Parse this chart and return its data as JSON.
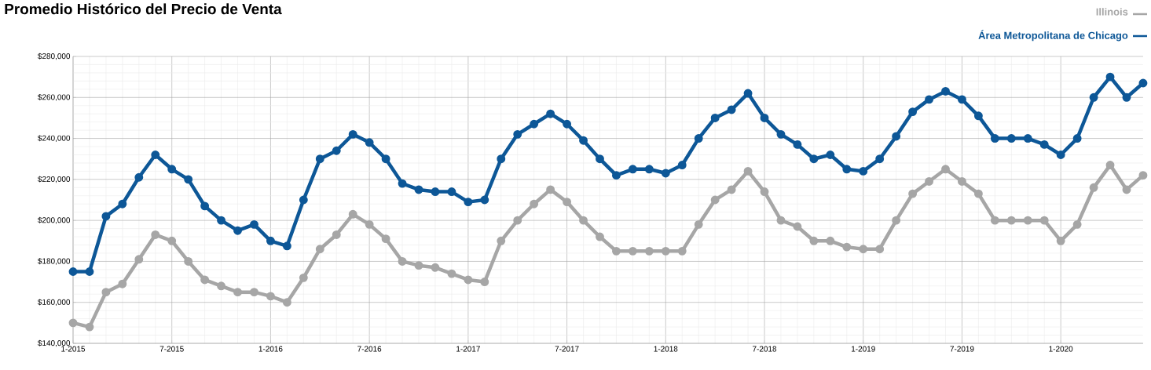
{
  "chart_data": {
    "type": "line",
    "title": "Promedio Histórico del Precio de Venta",
    "x": [
      "2015-01",
      "2015-02",
      "2015-03",
      "2015-04",
      "2015-05",
      "2015-06",
      "2015-07",
      "2015-08",
      "2015-09",
      "2015-10",
      "2015-11",
      "2015-12",
      "2016-01",
      "2016-02",
      "2016-03",
      "2016-04",
      "2016-05",
      "2016-06",
      "2016-07",
      "2016-08",
      "2016-09",
      "2016-10",
      "2016-11",
      "2016-12",
      "2017-01",
      "2017-02",
      "2017-03",
      "2017-04",
      "2017-05",
      "2017-06",
      "2017-07",
      "2017-08",
      "2017-09",
      "2017-10",
      "2017-11",
      "2017-12",
      "2018-01",
      "2018-02",
      "2018-03",
      "2018-04",
      "2018-05",
      "2018-06",
      "2018-07",
      "2018-08",
      "2018-09",
      "2018-10",
      "2018-11",
      "2018-12",
      "2019-01",
      "2019-02",
      "2019-03",
      "2019-04",
      "2019-05",
      "2019-06",
      "2019-07",
      "2019-08",
      "2019-09",
      "2019-10",
      "2019-11",
      "2019-12",
      "2020-01",
      "2020-02",
      "2020-03",
      "2020-04",
      "2020-05",
      "2020-06"
    ],
    "series": [
      {
        "name": "Illinois",
        "color": "#a6a6a6",
        "values": [
          150000,
          148000,
          165000,
          169000,
          181000,
          193000,
          190000,
          180000,
          171000,
          168000,
          165000,
          165000,
          163000,
          160000,
          172000,
          186000,
          193000,
          203000,
          198000,
          191000,
          180000,
          178000,
          177000,
          174000,
          171000,
          170000,
          190000,
          200000,
          208000,
          215000,
          209000,
          200000,
          192000,
          185000,
          185000,
          185000,
          185000,
          185000,
          198000,
          210000,
          215000,
          224000,
          214000,
          200000,
          197000,
          190000,
          190000,
          187000,
          186000,
          186000,
          200000,
          213000,
          219000,
          225000,
          219000,
          213000,
          200000,
          200000,
          200000,
          200000,
          190000,
          198000,
          216000,
          227000,
          215000,
          222000
        ]
      },
      {
        "name": "Área Metropolitana de Chicago",
        "color": "#0d5797",
        "values": [
          175000,
          175000,
          202000,
          208000,
          221000,
          232000,
          225000,
          220000,
          207000,
          200000,
          195000,
          198000,
          190000,
          187500,
          210000,
          230000,
          234000,
          242000,
          238000,
          230000,
          218000,
          215000,
          214000,
          214000,
          209000,
          210000,
          230000,
          242000,
          247000,
          252000,
          247000,
          239000,
          230000,
          222000,
          225000,
          225000,
          223000,
          227000,
          240000,
          250000,
          254000,
          262000,
          250000,
          242000,
          237000,
          230000,
          232000,
          225000,
          224000,
          230000,
          241000,
          253000,
          259000,
          263000,
          259000,
          251000,
          240000,
          240000,
          240000,
          237000,
          232000,
          240000,
          260000,
          270000,
          260000,
          267000
        ]
      }
    ],
    "xlim": [
      "2015-01",
      "2020-06"
    ],
    "xticks": [
      {
        "value": "2015-01",
        "label": "1-2015"
      },
      {
        "value": "2015-07",
        "label": "7-2015"
      },
      {
        "value": "2016-01",
        "label": "1-2016"
      },
      {
        "value": "2016-07",
        "label": "7-2016"
      },
      {
        "value": "2017-01",
        "label": "1-2017"
      },
      {
        "value": "2017-07",
        "label": "7-2017"
      },
      {
        "value": "2018-01",
        "label": "1-2018"
      },
      {
        "value": "2018-07",
        "label": "7-2018"
      },
      {
        "value": "2019-01",
        "label": "1-2019"
      },
      {
        "value": "2019-07",
        "label": "7-2019"
      },
      {
        "value": "2020-01",
        "label": "1-2020"
      }
    ],
    "ylim": [
      140000,
      280000
    ],
    "yticks": [
      {
        "value": 140000,
        "label": "$140,000"
      },
      {
        "value": 160000,
        "label": "$160,000"
      },
      {
        "value": 180000,
        "label": "$180,000"
      },
      {
        "value": 200000,
        "label": "$200,000"
      },
      {
        "value": 220000,
        "label": "$220,000"
      },
      {
        "value": 240000,
        "label": "$240,000"
      },
      {
        "value": 260000,
        "label": "$260,000"
      },
      {
        "value": 280000,
        "label": "$280,000"
      }
    ],
    "grid": true,
    "legend": "top right",
    "marker": "circle",
    "line_style": "solid"
  }
}
